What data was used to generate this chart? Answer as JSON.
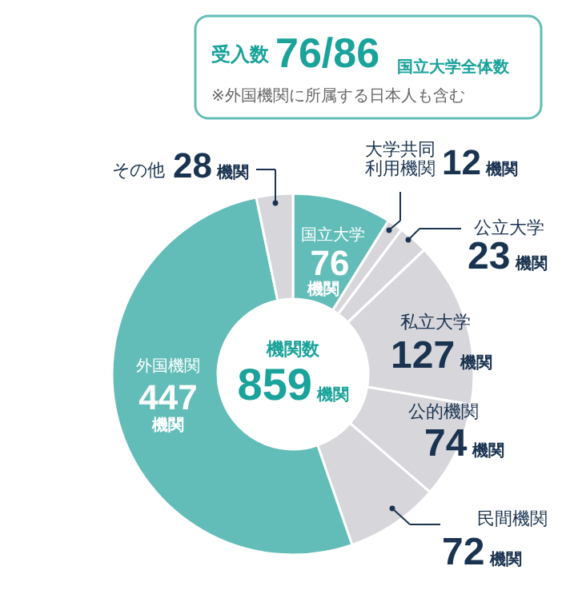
{
  "chart_data": {
    "type": "donut",
    "categories": [
      "国立大学",
      "大学共同利用機関",
      "公立大学",
      "私立大学",
      "公的機関",
      "民間機関",
      "外国機関",
      "その他"
    ],
    "values": [
      76,
      12,
      23,
      127,
      74,
      72,
      447,
      28
    ],
    "colors": [
      "#62bdb8",
      "#d7d6db",
      "#d7d6db",
      "#d7d6db",
      "#d7d6db",
      "#d7d6db",
      "#62bdb8",
      "#d7d6db"
    ],
    "value_labels": [
      "76機関",
      "12機関",
      "23機関",
      "127機関",
      "74機関",
      "72機関",
      "447機関",
      "28機関"
    ],
    "annotations": [
      "受入数",
      "76/86",
      "国立大学全体数",
      "※外国機関に所属する日本人も含む",
      "機関数",
      "859機関"
    ]
  }
}
